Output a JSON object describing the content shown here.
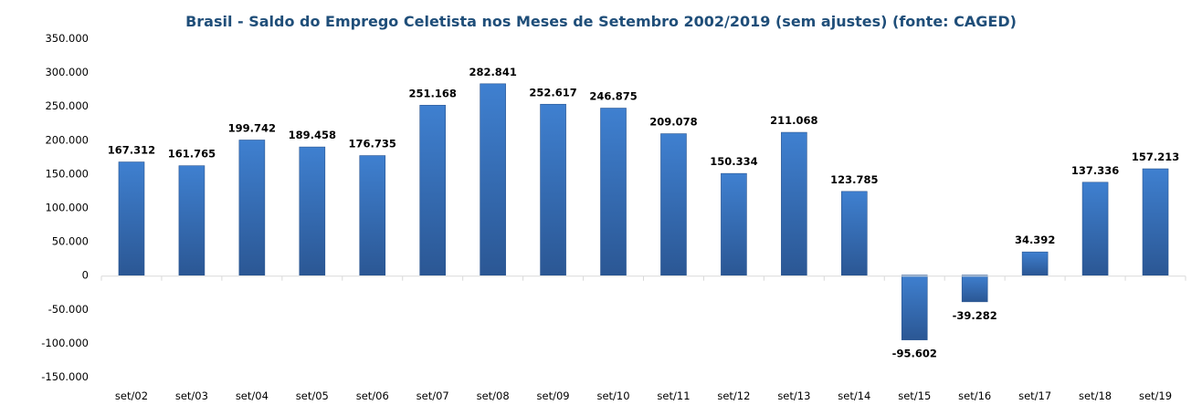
{
  "chart_data": {
    "type": "bar",
    "title": "Brasil - Saldo do Emprego Celetista nos Meses de Setembro 2002/2019 (sem ajustes) (fonte: CAGED)",
    "xlabel": "",
    "ylabel": "",
    "ylim": [
      -150000,
      350000
    ],
    "yticks": [
      350000,
      300000,
      250000,
      200000,
      150000,
      100000,
      50000,
      0,
      -50000,
      -100000,
      -150000
    ],
    "ytick_labels": [
      "350.000",
      "300.000",
      "250.000",
      "200.000",
      "150.000",
      "100.000",
      "50.000",
      "0",
      "-50.000",
      "-100.000",
      "-150.000"
    ],
    "categories": [
      "set/02",
      "set/03",
      "set/04",
      "set/05",
      "set/06",
      "set/07",
      "set/08",
      "set/09",
      "set/10",
      "set/11",
      "set/12",
      "set/13",
      "set/14",
      "set/15",
      "set/16",
      "set/17",
      "set/18",
      "set/19"
    ],
    "values": [
      167312,
      161765,
      199742,
      189458,
      176735,
      251168,
      282841,
      252617,
      246875,
      209078,
      150334,
      211068,
      123785,
      -95602,
      -39282,
      34392,
      137336,
      157213
    ],
    "value_labels": [
      "167.312",
      "161.765",
      "199.742",
      "189.458",
      "176.735",
      "251.168",
      "282.841",
      "252.617",
      "246.875",
      "209.078",
      "150.334",
      "211.068",
      "123.785",
      "-95.602",
      "-39.282",
      "34.392",
      "137.336",
      "157.213"
    ],
    "grid": false,
    "legend": "none",
    "colors": {
      "bar_top": "#3f80d0",
      "bar_bottom": "#2b5794",
      "title": "#1f4e79",
      "axis": "#d9d9d9"
    }
  }
}
